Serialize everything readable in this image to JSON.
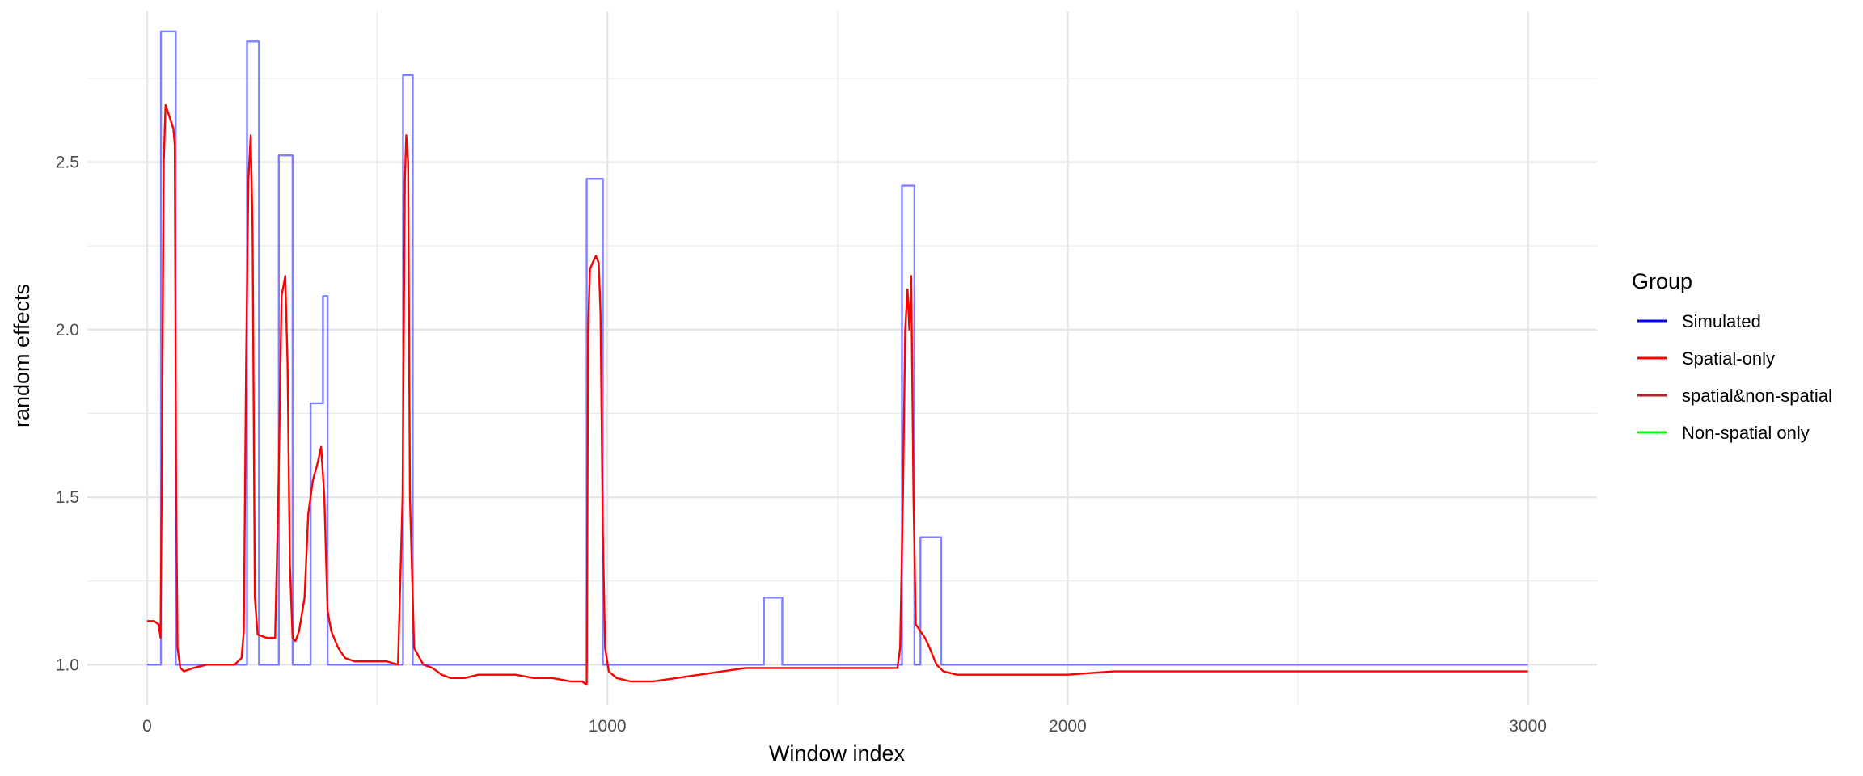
{
  "chart_data": {
    "type": "line",
    "title": "",
    "xlabel": "Window index",
    "ylabel": "random effects",
    "xlim": [
      -130,
      3150
    ],
    "ylim": [
      0.88,
      2.95
    ],
    "x_ticks": [
      0,
      1000,
      2000,
      3000
    ],
    "x_tick_labels": [
      "0",
      "1000",
      "2000",
      "3000"
    ],
    "y_ticks": [
      1.0,
      1.5,
      2.0,
      2.5
    ],
    "y_tick_labels": [
      "1.0",
      "1.5",
      "2.0",
      "2.5"
    ],
    "x_minor_ticks": [
      500,
      1500,
      2500
    ],
    "y_minor_ticks": [
      1.25,
      1.75,
      2.25,
      2.75
    ],
    "grid": true,
    "legend": {
      "title": "Group",
      "position": "right",
      "entries": [
        {
          "label": "Simulated",
          "color": "#0000ff"
        },
        {
          "label": "Spatial-only",
          "color": "#ff0000"
        },
        {
          "label": "spatial&non-spatial",
          "color": "#a52a2a"
        },
        {
          "label": "Non-spatial only",
          "color": "#00ff00"
        }
      ]
    },
    "series": [
      {
        "name": "Simulated",
        "color": "#0000ff",
        "opacity": 0.5,
        "step": true,
        "points": [
          [
            0,
            1.0
          ],
          [
            30,
            1.0
          ],
          [
            30,
            2.89
          ],
          [
            62,
            2.89
          ],
          [
            62,
            1.0
          ],
          [
            217,
            1.0
          ],
          [
            217,
            2.86
          ],
          [
            243,
            2.86
          ],
          [
            243,
            1.0
          ],
          [
            286,
            1.0
          ],
          [
            286,
            2.52
          ],
          [
            316,
            2.52
          ],
          [
            316,
            1.0
          ],
          [
            355,
            1.0
          ],
          [
            355,
            1.78
          ],
          [
            382,
            1.78
          ],
          [
            382,
            2.1
          ],
          [
            392,
            2.1
          ],
          [
            392,
            1.0
          ],
          [
            556,
            1.0
          ],
          [
            556,
            2.76
          ],
          [
            577,
            2.76
          ],
          [
            577,
            1.0
          ],
          [
            955,
            1.0
          ],
          [
            955,
            2.45
          ],
          [
            990,
            2.45
          ],
          [
            990,
            1.0
          ],
          [
            1340,
            1.0
          ],
          [
            1340,
            1.2
          ],
          [
            1380,
            1.2
          ],
          [
            1380,
            1.0
          ],
          [
            1640,
            1.0
          ],
          [
            1640,
            2.43
          ],
          [
            1667,
            2.43
          ],
          [
            1667,
            1.0
          ],
          [
            1680,
            1.0
          ],
          [
            1680,
            1.38
          ],
          [
            1725,
            1.38
          ],
          [
            1725,
            1.0
          ],
          [
            3000,
            1.0
          ]
        ]
      },
      {
        "name": "Spatial-only",
        "color": "#ff0000",
        "points": [
          [
            0,
            1.13
          ],
          [
            15,
            1.13
          ],
          [
            25,
            1.12
          ],
          [
            29,
            1.08
          ],
          [
            32,
            1.6
          ],
          [
            36,
            2.5
          ],
          [
            40,
            2.67
          ],
          [
            45,
            2.65
          ],
          [
            52,
            2.62
          ],
          [
            57,
            2.6
          ],
          [
            60,
            2.55
          ],
          [
            63,
            1.5
          ],
          [
            66,
            1.05
          ],
          [
            72,
            0.99
          ],
          [
            80,
            0.98
          ],
          [
            100,
            0.99
          ],
          [
            130,
            1.0
          ],
          [
            160,
            1.0
          ],
          [
            190,
            1.0
          ],
          [
            205,
            1.02
          ],
          [
            210,
            1.1
          ],
          [
            215,
            1.9
          ],
          [
            220,
            2.45
          ],
          [
            225,
            2.58
          ],
          [
            229,
            2.3
          ],
          [
            234,
            1.2
          ],
          [
            240,
            1.09
          ],
          [
            260,
            1.08
          ],
          [
            278,
            1.08
          ],
          [
            285,
            1.5
          ],
          [
            292,
            2.1
          ],
          [
            300,
            2.16
          ],
          [
            305,
            1.9
          ],
          [
            310,
            1.3
          ],
          [
            316,
            1.08
          ],
          [
            322,
            1.07
          ],
          [
            330,
            1.1
          ],
          [
            342,
            1.2
          ],
          [
            350,
            1.45
          ],
          [
            360,
            1.55
          ],
          [
            370,
            1.6
          ],
          [
            378,
            1.65
          ],
          [
            385,
            1.5
          ],
          [
            392,
            1.16
          ],
          [
            400,
            1.1
          ],
          [
            415,
            1.05
          ],
          [
            430,
            1.02
          ],
          [
            450,
            1.01
          ],
          [
            480,
            1.01
          ],
          [
            520,
            1.01
          ],
          [
            545,
            1.0
          ],
          [
            555,
            1.5
          ],
          [
            560,
            2.45
          ],
          [
            563,
            2.58
          ],
          [
            567,
            2.5
          ],
          [
            571,
            1.5
          ],
          [
            580,
            1.05
          ],
          [
            600,
            1.0
          ],
          [
            620,
            0.99
          ],
          [
            640,
            0.97
          ],
          [
            660,
            0.96
          ],
          [
            690,
            0.96
          ],
          [
            720,
            0.97
          ],
          [
            760,
            0.97
          ],
          [
            800,
            0.97
          ],
          [
            840,
            0.96
          ],
          [
            880,
            0.96
          ],
          [
            920,
            0.95
          ],
          [
            945,
            0.95
          ],
          [
            955,
            0.94
          ],
          [
            958,
            2.0
          ],
          [
            962,
            2.18
          ],
          [
            968,
            2.2
          ],
          [
            975,
            2.22
          ],
          [
            981,
            2.2
          ],
          [
            985,
            2.05
          ],
          [
            990,
            1.4
          ],
          [
            995,
            1.05
          ],
          [
            1003,
            0.98
          ],
          [
            1020,
            0.96
          ],
          [
            1050,
            0.95
          ],
          [
            1100,
            0.95
          ],
          [
            1150,
            0.96
          ],
          [
            1200,
            0.97
          ],
          [
            1250,
            0.98
          ],
          [
            1300,
            0.99
          ],
          [
            1340,
            0.99
          ],
          [
            1380,
            0.99
          ],
          [
            1420,
            0.99
          ],
          [
            1470,
            0.99
          ],
          [
            1520,
            0.99
          ],
          [
            1560,
            0.99
          ],
          [
            1600,
            0.99
          ],
          [
            1630,
            0.99
          ],
          [
            1636,
            1.05
          ],
          [
            1642,
            1.5
          ],
          [
            1647,
            2.0
          ],
          [
            1652,
            2.12
          ],
          [
            1656,
            2.0
          ],
          [
            1660,
            2.16
          ],
          [
            1665,
            1.5
          ],
          [
            1670,
            1.12
          ],
          [
            1680,
            1.1
          ],
          [
            1690,
            1.08
          ],
          [
            1700,
            1.05
          ],
          [
            1715,
            1.0
          ],
          [
            1730,
            0.98
          ],
          [
            1760,
            0.97
          ],
          [
            1800,
            0.97
          ],
          [
            1850,
            0.97
          ],
          [
            1900,
            0.97
          ],
          [
            2000,
            0.97
          ],
          [
            2100,
            0.98
          ],
          [
            2200,
            0.98
          ],
          [
            2300,
            0.98
          ],
          [
            2400,
            0.98
          ],
          [
            2500,
            0.98
          ],
          [
            2600,
            0.98
          ],
          [
            2700,
            0.98
          ],
          [
            2800,
            0.98
          ],
          [
            2900,
            0.98
          ],
          [
            3000,
            0.98
          ]
        ]
      }
    ]
  }
}
